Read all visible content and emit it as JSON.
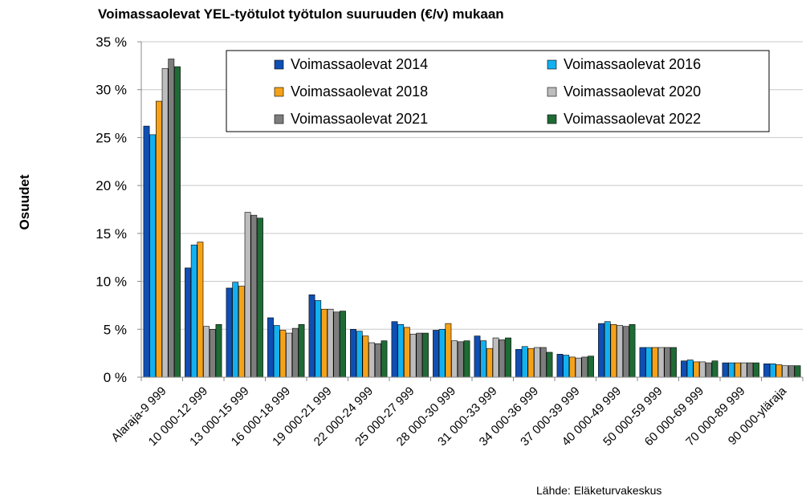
{
  "chart_data": {
    "type": "bar",
    "title": "Voimassaolevat YEL-työtulot työtulon suuruuden (€/v) mukaan",
    "ylabel": "Osuudet",
    "xlabel": "",
    "source": "Lähde: Eläketurvakeskus",
    "ylim": [
      0,
      35
    ],
    "yticks": [
      "0 %",
      "5 %",
      "10 %",
      "15 %",
      "20 %",
      "25 %",
      "30 %",
      "35 %"
    ],
    "grid": true,
    "legend_position": "top-right",
    "categories": [
      "Alaraja-9 999",
      "10 000-12 999",
      "13 000-15 999",
      "16 000-18 999",
      "19 000-21 999",
      "22 000-24 999",
      "25 000-27 999",
      "28 000-30 999",
      "31 000-33 999",
      "34 000-36 999",
      "37 000-39 999",
      "40 000-49 999",
      "50 000-59 999",
      "60 000-69 999",
      "70 000-89 999",
      "90 000-yläraja"
    ],
    "series": [
      {
        "name": "Voimassaolevat 2014",
        "color": "#0f4fb4",
        "values": [
          26.2,
          11.4,
          9.3,
          6.2,
          8.6,
          5.0,
          5.8,
          4.9,
          4.3,
          2.9,
          2.4,
          5.6,
          3.1,
          1.7,
          1.5,
          1.4
        ]
      },
      {
        "name": "Voimassaolevat 2016",
        "color": "#12b0f0",
        "values": [
          25.3,
          13.8,
          9.9,
          5.4,
          8.0,
          4.8,
          5.5,
          5.0,
          3.8,
          3.2,
          2.3,
          5.8,
          3.1,
          1.8,
          1.5,
          1.4
        ]
      },
      {
        "name": "Voimassaolevat 2018",
        "color": "#f5a21a",
        "values": [
          28.8,
          14.1,
          9.5,
          4.9,
          7.1,
          4.3,
          5.2,
          5.6,
          3.0,
          3.0,
          2.1,
          5.5,
          3.1,
          1.6,
          1.5,
          1.3
        ]
      },
      {
        "name": "Voimassaolevat 2020",
        "color": "#bdbdbd",
        "values": [
          32.2,
          5.3,
          17.2,
          4.6,
          7.1,
          3.6,
          4.5,
          3.8,
          4.1,
          3.1,
          2.0,
          5.4,
          3.1,
          1.6,
          1.5,
          1.2
        ]
      },
      {
        "name": "Voimassaolevat 2021",
        "color": "#7d7d7d",
        "values": [
          33.2,
          5.0,
          16.9,
          5.1,
          6.8,
          3.5,
          4.6,
          3.7,
          3.9,
          3.1,
          2.1,
          5.3,
          3.1,
          1.5,
          1.5,
          1.2
        ]
      },
      {
        "name": "Voimassaolevat 2022",
        "color": "#1f6b35",
        "values": [
          32.4,
          5.5,
          16.6,
          5.5,
          6.9,
          3.8,
          4.6,
          3.8,
          4.1,
          2.6,
          2.2,
          5.5,
          3.1,
          1.7,
          1.5,
          1.2
        ]
      }
    ]
  }
}
